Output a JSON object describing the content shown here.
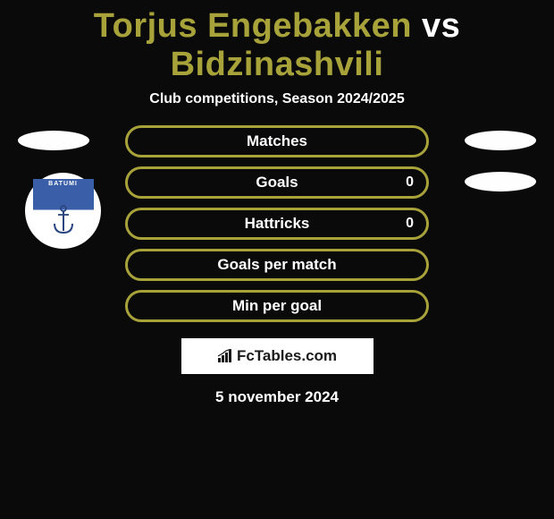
{
  "title": {
    "player1": "Torjus Engebakken",
    "vs": "vs",
    "player2": "Bidzinashvili",
    "color_player": "#a8a23a",
    "color_vs": "#ffffff"
  },
  "subtitle": "Club competitions, Season 2024/2025",
  "club_badge_text": "BATUMI",
  "rows": [
    {
      "label": "Matches",
      "value_right": null,
      "border_color": "#a8a23a",
      "show_left_oval": true,
      "show_right_oval": true
    },
    {
      "label": "Goals",
      "value_right": "0",
      "border_color": "#a8a23a",
      "show_left_oval": false,
      "show_right_oval": true
    },
    {
      "label": "Hattricks",
      "value_right": "0",
      "border_color": "#a8a23a",
      "show_left_oval": false,
      "show_right_oval": false
    },
    {
      "label": "Goals per match",
      "value_right": null,
      "border_color": "#a8a23a",
      "show_left_oval": false,
      "show_right_oval": false
    },
    {
      "label": "Min per goal",
      "value_right": null,
      "border_color": "#a8a23a",
      "show_left_oval": false,
      "show_right_oval": false
    }
  ],
  "brand": "FcTables.com",
  "date": "5 november 2024",
  "colors": {
    "background": "#0a0a0a",
    "oval": "#fefefe",
    "text": "#ffffff"
  }
}
